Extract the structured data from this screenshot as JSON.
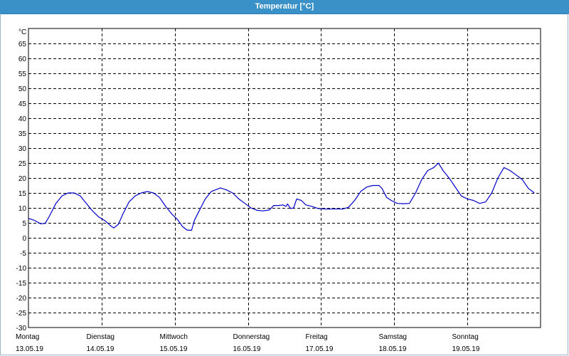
{
  "window": {
    "title": "Temperatur [°C]"
  },
  "colors": {
    "title_bar": "#3a91c8",
    "series_line": "#0000cc",
    "grid": "#000000"
  },
  "chart_data": {
    "type": "line",
    "title": "Temperatur [°C]",
    "unit_label": "°C",
    "ylim": [
      -30,
      70
    ],
    "yticks": [
      65,
      60,
      55,
      50,
      45,
      40,
      35,
      30,
      25,
      20,
      15,
      10,
      5,
      0,
      -5,
      -10,
      -15,
      -20,
      -25,
      -30
    ],
    "grid": true,
    "x_axis": {
      "start": "13.05.19 00:00",
      "end": "20.05.19 00:00",
      "day_labels": [
        {
          "weekday": "Montag",
          "date": "13.05.19"
        },
        {
          "weekday": "Dienstag",
          "date": "14.05.19"
        },
        {
          "weekday": "Mittwoch",
          "date": "15.05.19"
        },
        {
          "weekday": "Donnerstag",
          "date": "16.05.19"
        },
        {
          "weekday": "Freitag",
          "date": "17.05.19"
        },
        {
          "weekday": "Samstag",
          "date": "18.05.19"
        },
        {
          "weekday": "Sonntag",
          "date": "19.05.19"
        }
      ]
    },
    "series": [
      {
        "values": [
          [
            "13.05.19 00:00",
            6.5
          ],
          [
            "13.05.19 02:00",
            5.8
          ],
          [
            "13.05.19 04:00",
            4.7
          ],
          [
            "13.05.19 05:30",
            4.8
          ],
          [
            "13.05.19 07:00",
            7.5
          ],
          [
            "13.05.19 09:00",
            11.5
          ],
          [
            "13.05.19 11:00",
            14.0
          ],
          [
            "13.05.19 13:00",
            15.0
          ],
          [
            "13.05.19 15:00",
            15.0
          ],
          [
            "13.05.19 17:00",
            14.0
          ],
          [
            "13.05.19 19:00",
            11.5
          ],
          [
            "13.05.19 21:00",
            9.0
          ],
          [
            "13.05.19 23:00",
            7.0
          ],
          [
            "14.05.19 01:00",
            5.8
          ],
          [
            "14.05.19 03:00",
            4.0
          ],
          [
            "14.05.19 04:00",
            3.3
          ],
          [
            "14.05.19 05:30",
            4.5
          ],
          [
            "14.05.19 07:00",
            8.0
          ],
          [
            "14.05.19 09:00",
            12.0
          ],
          [
            "14.05.19 11:00",
            14.0
          ],
          [
            "14.05.19 13:00",
            15.0
          ],
          [
            "14.05.19 15:00",
            15.5
          ],
          [
            "14.05.19 17:00",
            15.0
          ],
          [
            "14.05.19 19:00",
            13.5
          ],
          [
            "14.05.19 21:00",
            10.5
          ],
          [
            "14.05.19 23:00",
            8.0
          ],
          [
            "15.05.19 01:00",
            6.0
          ],
          [
            "15.05.19 02:30",
            3.8
          ],
          [
            "15.05.19 04:00",
            2.6
          ],
          [
            "15.05.19 05:30",
            2.5
          ],
          [
            "15.05.19 06:30",
            6.0
          ],
          [
            "15.05.19 08:00",
            9.0
          ],
          [
            "15.05.19 10:00",
            13.0
          ],
          [
            "15.05.19 12:00",
            15.5
          ],
          [
            "15.05.19 15:00",
            16.7
          ],
          [
            "15.05.19 17:00",
            16.0
          ],
          [
            "15.05.19 19:00",
            15.0
          ],
          [
            "15.05.19 21:00",
            13.0
          ],
          [
            "15.05.19 23:00",
            11.5
          ],
          [
            "16.05.19 01:00",
            10.0
          ],
          [
            "16.05.19 03:00",
            9.2
          ],
          [
            "16.05.19 05:00",
            9.0
          ],
          [
            "16.05.19 07:00",
            9.3
          ],
          [
            "16.05.19 08:30",
            10.8
          ],
          [
            "16.05.19 10:00",
            10.8
          ],
          [
            "16.05.19 11:30",
            11.0
          ],
          [
            "16.05.19 12:30",
            10.5
          ],
          [
            "16.05.19 13:00",
            11.3
          ],
          [
            "16.05.19 14:00",
            9.8
          ],
          [
            "16.05.19 15:00",
            10.0
          ],
          [
            "16.05.19 16:00",
            13.0
          ],
          [
            "16.05.19 17:30",
            12.5
          ],
          [
            "16.05.19 19:00",
            11.0
          ],
          [
            "16.05.19 21:00",
            10.5
          ],
          [
            "16.05.19 23:00",
            9.8
          ],
          [
            "17.05.19 02:00",
            9.6
          ],
          [
            "17.05.19 05:00",
            9.7
          ],
          [
            "17.05.19 07:00",
            9.6
          ],
          [
            "17.05.19 09:00",
            10.2
          ],
          [
            "17.05.19 11:00",
            12.5
          ],
          [
            "17.05.19 13:00",
            15.5
          ],
          [
            "17.05.19 15:00",
            17.0
          ],
          [
            "17.05.19 17:00",
            17.5
          ],
          [
            "17.05.19 19:00",
            17.5
          ],
          [
            "17.05.19 20:00",
            16.5
          ],
          [
            "17.05.19 21:30",
            13.5
          ],
          [
            "17.05.19 23:00",
            12.5
          ],
          [
            "18.05.19 01:00",
            11.5
          ],
          [
            "18.05.19 03:00",
            11.4
          ],
          [
            "18.05.19 05:00",
            11.5
          ],
          [
            "18.05.19 07:00",
            15.0
          ],
          [
            "18.05.19 09:00",
            19.5
          ],
          [
            "18.05.19 11:00",
            22.5
          ],
          [
            "18.05.19 13:00",
            23.5
          ],
          [
            "18.05.19 14:30",
            25.0
          ],
          [
            "18.05.19 16:00",
            22.5
          ],
          [
            "18.05.19 18:00",
            20.0
          ],
          [
            "18.05.19 20:00",
            17.0
          ],
          [
            "18.05.19 22:00",
            14.0
          ],
          [
            "19.05.19 00:00",
            13.0
          ],
          [
            "19.05.19 02:00",
            12.5
          ],
          [
            "19.05.19 04:00",
            11.5
          ],
          [
            "19.05.19 06:00",
            12.0
          ],
          [
            "19.05.19 08:00",
            15.0
          ],
          [
            "19.05.19 10:00",
            20.0
          ],
          [
            "19.05.19 12:00",
            23.5
          ],
          [
            "19.05.19 14:00",
            22.5
          ],
          [
            "19.05.19 16:00",
            21.0
          ],
          [
            "19.05.19 18:00",
            19.5
          ],
          [
            "19.05.19 20:00",
            16.5
          ],
          [
            "19.05.19 22:00",
            15.0
          ]
        ]
      }
    ]
  }
}
